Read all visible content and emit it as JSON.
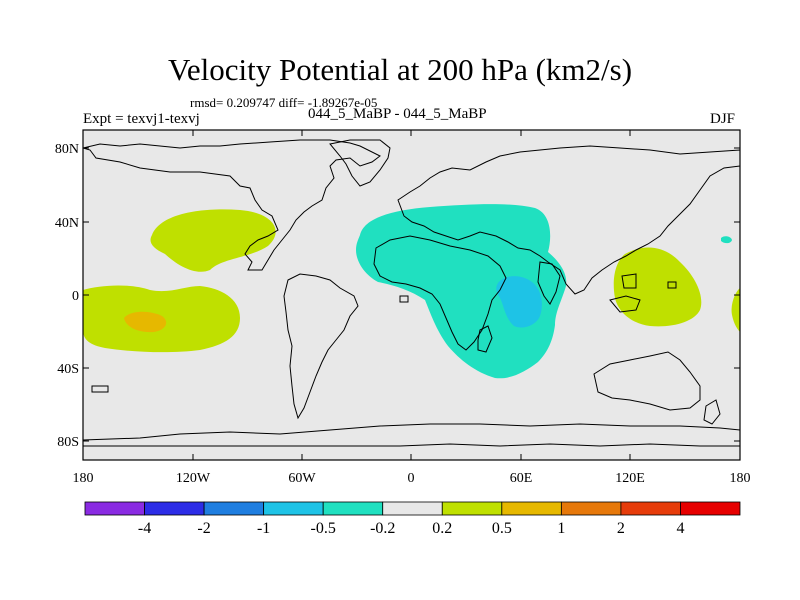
{
  "title": "Velocity Potential at 200 hPa (km2/s)",
  "stats": "rmsd= 0.209747 diff= -1.89267e-05",
  "experiment": "Expt = texvj1-texvj",
  "experiment_names": "044_5_MaBP - 044_5_MaBP",
  "season": "DJF",
  "lat_labels": [
    "80N",
    "40N",
    "0",
    "40S",
    "80S"
  ],
  "lon_labels": [
    "180",
    "120W",
    "60W",
    "0",
    "60E",
    "120E",
    "180"
  ],
  "colorbar": {
    "colors": [
      "#8a2be2",
      "#2c2ce6",
      "#1f7ee0",
      "#1ec3e6",
      "#20e0c0",
      "#e8e8e8",
      "#bfe000",
      "#e6b800",
      "#e6780a",
      "#e63c0a",
      "#e60000"
    ],
    "labels": [
      "-4",
      "-2",
      "-1",
      "-0.5",
      "-0.2",
      "0.2",
      "0.5",
      "1",
      "2",
      "4"
    ]
  },
  "legend_values": [
    -4,
    -2,
    -1,
    -0.5,
    -0.2,
    0.2,
    0.5,
    1,
    2,
    4
  ]
}
